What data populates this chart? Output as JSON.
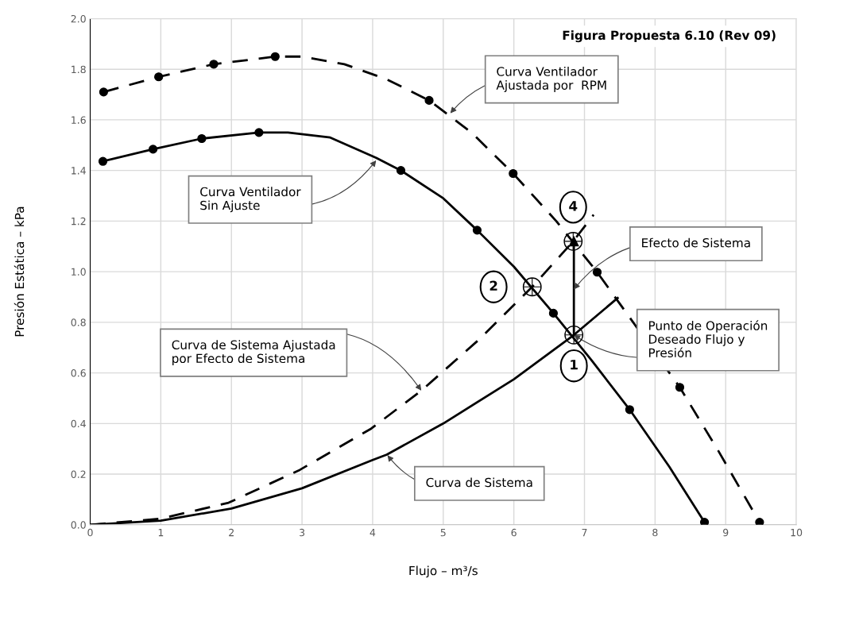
{
  "chart_data": {
    "type": "line",
    "title": "Figura Propuesta 6.10 (Rev 09)",
    "xlabel": "Flujo – m³/s",
    "ylabel": "Presión Estática – kPa",
    "xlim": [
      0,
      10
    ],
    "ylim": [
      0,
      2
    ],
    "xticks": [
      0,
      1,
      2,
      3,
      4,
      5,
      6,
      7,
      8,
      9,
      10
    ],
    "yticks": [
      {
        "value": 0,
        "label": "0.0"
      },
      {
        "value": 0.2,
        "label": "0.2"
      },
      {
        "value": 0.4,
        "label": "0.4"
      },
      {
        "value": 0.6,
        "label": "0.6"
      },
      {
        "value": 0.8,
        "label": "0.8"
      },
      {
        "value": 1,
        "label": "1.0"
      },
      {
        "value": 1.2,
        "label": "1.2"
      },
      {
        "value": 1.4,
        "label": "1.4"
      },
      {
        "value": 1.6,
        "label": "1.6"
      },
      {
        "value": 1.8,
        "label": "1.8"
      },
      {
        "value": 2,
        "label": "2.0"
      }
    ],
    "grid": true,
    "series": [
      {
        "color": "#000000",
        "marker": "none",
        "line_style": "dashed",
        "x": [
          0.19,
          0.97,
          1.75,
          2.62,
          3.0,
          3.6,
          4.2,
          4.8,
          5.4,
          5.99,
          6.6,
          7.18,
          8.35,
          8.9,
          9.48
        ],
        "values": [
          1.71,
          1.77,
          1.82,
          1.85,
          1.85,
          1.82,
          1.76,
          1.677,
          1.55,
          1.388,
          1.2,
          0.998,
          0.543,
          0.29,
          0.01
        ]
      },
      {
        "type": "scatter",
        "color": "#000000",
        "marker": "dot",
        "x": [
          0.19,
          0.97,
          1.75,
          2.62,
          4.8,
          5.99,
          7.18,
          8.35,
          9.48
        ],
        "values": [
          1.71,
          1.77,
          1.82,
          1.85,
          1.677,
          1.388,
          0.998,
          0.543,
          0.01
        ]
      },
      {
        "color": "#000000",
        "marker": "none",
        "line_style": "solid",
        "x": [
          0.18,
          0.89,
          1.58,
          2.39,
          2.8,
          3.4,
          4.05,
          4.4,
          5.0,
          5.48,
          6.0,
          6.56,
          7.1,
          7.64,
          8.2,
          8.7
        ],
        "values": [
          1.436,
          1.484,
          1.526,
          1.55,
          1.55,
          1.53,
          1.45,
          1.4,
          1.29,
          1.164,
          1.02,
          0.836,
          0.65,
          0.455,
          0.23,
          0.01
        ]
      },
      {
        "type": "scatter",
        "color": "#000000",
        "marker": "dot",
        "x": [
          0.18,
          0.89,
          1.58,
          2.39,
          4.4,
          5.48,
          6.56,
          7.64,
          8.7
        ],
        "values": [
          1.436,
          1.484,
          1.526,
          1.55,
          1.4,
          1.164,
          0.836,
          0.455,
          0.01
        ]
      },
      {
        "color": "#000000",
        "marker": "none",
        "line_style": "solid",
        "x": [
          0,
          1,
          2,
          3,
          4,
          4.2,
          5,
          6,
          6.85,
          7.47
        ],
        "values": [
          0,
          0.016,
          0.064,
          0.144,
          0.256,
          0.277,
          0.4,
          0.575,
          0.75,
          0.896
        ]
      },
      {
        "color": "#000000",
        "marker": "none",
        "line_style": "dashed",
        "x": [
          0,
          1,
          1.96,
          2.97,
          3.98,
          4.69,
          5.5,
          6.26,
          6.84,
          7.13
        ],
        "values": [
          0,
          0.024,
          0.087,
          0.217,
          0.38,
          0.53,
          0.73,
          0.94,
          1.12,
          1.225
        ]
      },
      {
        "color": "#000000",
        "marker": "triangle",
        "line_style": "solid",
        "x": [
          6.85,
          6.85
        ],
        "values": [
          0.75,
          1.12
        ]
      },
      {
        "type": "scatter",
        "color": "#000000",
        "marker": "circle",
        "x": [
          6.85,
          6.26,
          6.84
        ],
        "values": [
          0.75,
          0.94,
          1.12
        ]
      }
    ],
    "annotations": [
      {
        "text": "Curva Ventilador\nAjustada por  RPM",
        "x": 5.1,
        "y": 1.626
      },
      {
        "text": "Curva Ventilador\nSin Ajuste",
        "x": 4.05,
        "y": 1.44
      },
      {
        "text": "Efecto de Sistema",
        "x": 6.85,
        "y": 0.93
      },
      {
        "text": "Punto de Operación\nDeseado Flujo y\nPresión",
        "x": 6.85,
        "y": 0.75
      },
      {
        "text": "Curva de Sistema Ajustada\npor Efecto de Sistema",
        "x": 4.69,
        "y": 0.53
      },
      {
        "text": "Curva de Sistema",
        "x": 4.21,
        "y": 0.275
      },
      {
        "text": "1",
        "x": 6.85,
        "y": 0.75
      },
      {
        "text": "2",
        "x": 6.26,
        "y": 0.94
      },
      {
        "text": "4",
        "x": 6.84,
        "y": 1.12
      }
    ]
  }
}
